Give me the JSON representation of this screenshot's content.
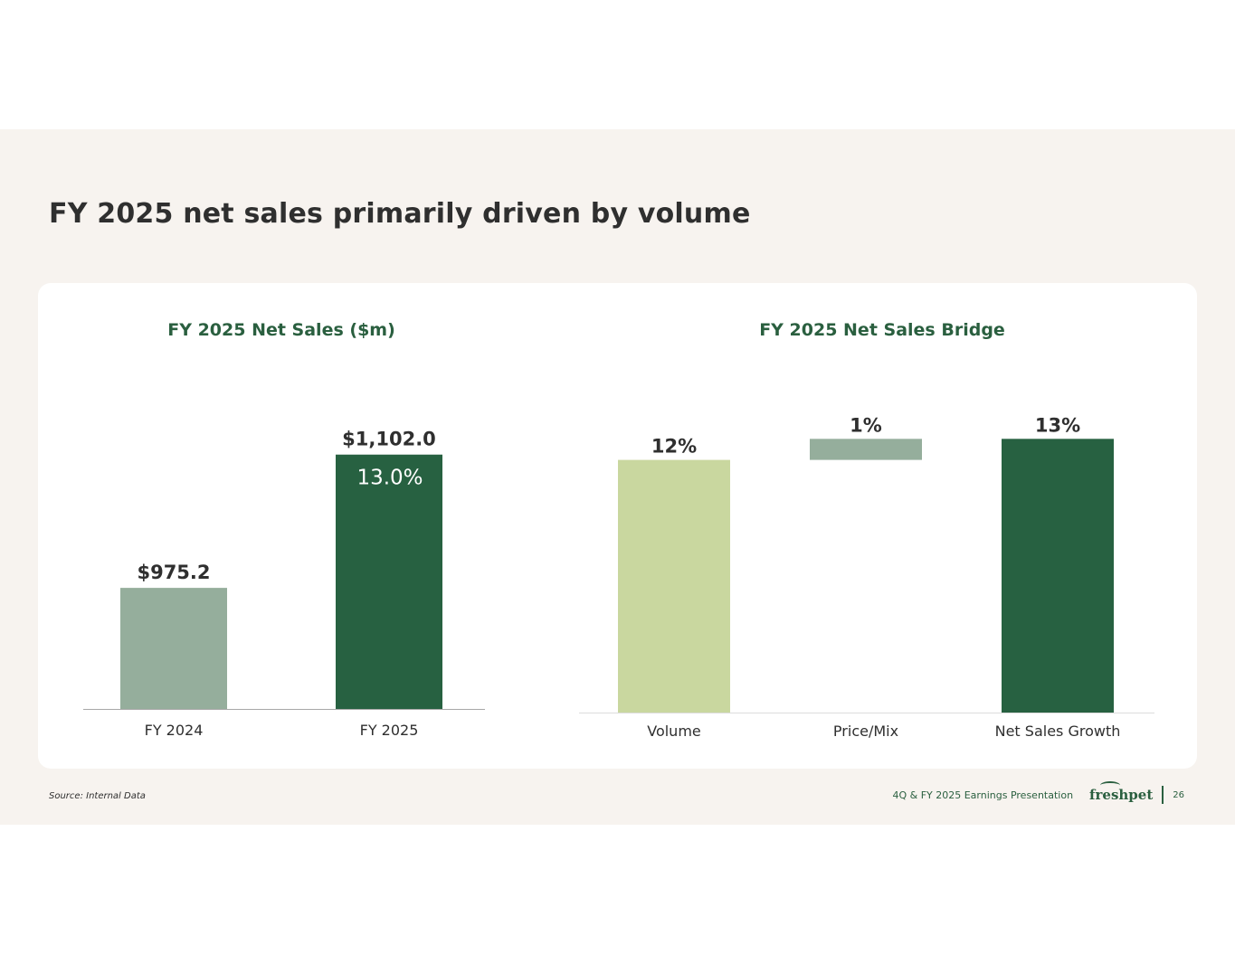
{
  "slide": {
    "title": "FY 2025 net sales primarily driven by volume",
    "source": "Source: Internal Data",
    "presentation": "4Q & FY 2025 Earnings Presentation",
    "logo": "freshpet",
    "page_number": "26"
  },
  "colors": {
    "background": "#f7f3ef",
    "title_green": "#2a5f3f",
    "dark_green": "#276141",
    "sage": "#95ae9c",
    "light_green": "#c9d79f"
  },
  "chart_data": [
    {
      "type": "bar",
      "title": "FY 2025 Net Sales ($m)",
      "categories": [
        "FY 2024",
        "FY 2025"
      ],
      "values": [
        975.2,
        1102.0
      ],
      "data_labels": [
        "$975.2",
        "$1,102.0"
      ],
      "annotation": "13.0%",
      "ylim": [
        860,
        1125
      ],
      "xlabel": "",
      "ylabel": "",
      "grid": false
    },
    {
      "type": "bar",
      "title": "FY 2025 Net Sales Bridge",
      "subtype": "waterfall",
      "categories": [
        "Volume",
        "Price/Mix",
        "Net Sales Growth"
      ],
      "values": [
        12,
        1,
        13
      ],
      "data_labels": [
        "12%",
        "1%",
        "13%"
      ],
      "ylim": [
        0,
        13.4
      ],
      "xlabel": "",
      "ylabel": "",
      "grid": false
    }
  ]
}
